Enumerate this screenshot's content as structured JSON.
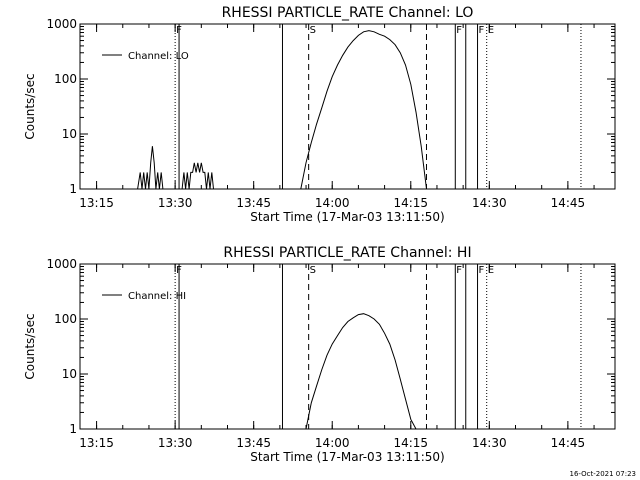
{
  "chart_data": [
    {
      "type": "line",
      "title": "RHESSI PARTICLE_RATE Channel: LO",
      "xlabel": "Start Time (17-Mar-03 13:11:50)",
      "ylabel": "Counts/sec",
      "yscale": "log",
      "ylim": [
        1,
        1000
      ],
      "xlim": [
        "13:11:50",
        "14:54:00"
      ],
      "x_tick_labels": [
        "13:15",
        "13:30",
        "13:45",
        "14:00",
        "14:15",
        "14:30",
        "14:45"
      ],
      "y_tick_labels": [
        "1",
        "10",
        "100",
        "1000"
      ],
      "grid": false,
      "legend": {
        "position": "top-left",
        "entries": [
          "Channel: LO"
        ]
      },
      "markers": [
        {
          "time": "13:30:00",
          "style": "dotted",
          "label": "F"
        },
        {
          "time": "13:30:45",
          "style": "solid",
          "label": ""
        },
        {
          "time": "13:50:30",
          "style": "solid",
          "label": ""
        },
        {
          "time": "13:55:30",
          "style": "dashed",
          "label": "S"
        },
        {
          "time": "14:18:00",
          "style": "dashed",
          "label": ""
        },
        {
          "time": "14:23:30",
          "style": "solid",
          "label": "F"
        },
        {
          "time": "14:25:30",
          "style": "solid",
          "label": ""
        },
        {
          "time": "14:27:45",
          "style": "solid",
          "label": "F"
        },
        {
          "time": "14:29:30",
          "style": "dotted",
          "label": "E"
        },
        {
          "time": "14:47:30",
          "style": "dotted",
          "label": ""
        }
      ],
      "series": [
        {
          "name": "Channel: LO",
          "segments": [
            {
              "x": [
                "13:22:50",
                "13:23:20",
                "13:23:40",
                "13:24:00",
                "13:24:20",
                "13:24:40",
                "13:25:00",
                "13:25:20",
                "13:25:40",
                "13:26:00",
                "13:26:20",
                "13:26:40",
                "13:27:00",
                "13:27:20",
                "13:27:40",
                "13:28:00"
              ],
              "y": [
                1,
                2,
                1,
                2,
                1,
                2,
                1,
                3,
                6,
                3,
                1,
                2,
                1,
                2,
                1,
                1
              ]
            },
            {
              "x": [
                "13:31:20",
                "13:31:40",
                "13:32:00",
                "13:32:20",
                "13:32:40",
                "13:33:00",
                "13:33:20",
                "13:33:40",
                "13:34:00",
                "13:34:20",
                "13:34:40",
                "13:35:00",
                "13:35:20",
                "13:35:40",
                "13:36:00",
                "13:36:20",
                "13:36:40",
                "13:37:00",
                "13:37:20"
              ],
              "y": [
                1,
                2,
                1,
                2,
                1,
                2,
                2,
                3,
                2,
                3,
                2,
                3,
                2,
                2,
                1,
                2,
                1,
                2,
                1
              ]
            },
            {
              "x": [
                "13:54:00",
                "13:55:00",
                "13:56:00",
                "13:57:00",
                "13:58:00",
                "13:59:00",
                "14:00:00",
                "14:01:00",
                "14:02:00",
                "14:03:00",
                "14:04:00",
                "14:05:00",
                "14:06:00",
                "14:07:00",
                "14:08:00",
                "14:09:00",
                "14:10:00",
                "14:11:00",
                "14:12:00",
                "14:13:00",
                "14:14:00",
                "14:15:00",
                "14:16:00",
                "14:17:00",
                "14:18:00"
              ],
              "y": [
                1,
                3,
                7,
                15,
                30,
                60,
                110,
                180,
                270,
                380,
                500,
                620,
                720,
                760,
                720,
                650,
                600,
                520,
                420,
                300,
                180,
                80,
                25,
                6,
                1
              ]
            }
          ]
        }
      ]
    },
    {
      "type": "line",
      "title": "RHESSI PARTICLE_RATE Channel: HI",
      "xlabel": "Start Time (17-Mar-03 13:11:50)",
      "ylabel": "Counts/sec",
      "yscale": "log",
      "ylim": [
        1,
        1000
      ],
      "xlim": [
        "13:11:50",
        "14:54:00"
      ],
      "x_tick_labels": [
        "13:15",
        "13:30",
        "13:45",
        "14:00",
        "14:15",
        "14:30",
        "14:45"
      ],
      "y_tick_labels": [
        "1",
        "10",
        "100",
        "1000"
      ],
      "grid": false,
      "legend": {
        "position": "top-left",
        "entries": [
          "Channel: HI"
        ]
      },
      "markers": [
        {
          "time": "13:30:00",
          "style": "dotted",
          "label": "F"
        },
        {
          "time": "13:30:45",
          "style": "solid",
          "label": ""
        },
        {
          "time": "13:50:30",
          "style": "solid",
          "label": ""
        },
        {
          "time": "13:55:30",
          "style": "dashed",
          "label": "S"
        },
        {
          "time": "14:18:00",
          "style": "dashed",
          "label": ""
        },
        {
          "time": "14:23:30",
          "style": "solid",
          "label": "F"
        },
        {
          "time": "14:25:30",
          "style": "solid",
          "label": ""
        },
        {
          "time": "14:27:45",
          "style": "solid",
          "label": "F"
        },
        {
          "time": "14:29:30",
          "style": "dotted",
          "label": "E"
        },
        {
          "time": "14:47:30",
          "style": "dotted",
          "label": ""
        }
      ],
      "series": [
        {
          "name": "Channel: HI",
          "segments": [
            {
              "x": [
                "13:55:00",
                "13:56:00",
                "13:57:00",
                "13:58:00",
                "13:59:00",
                "14:00:00",
                "14:01:00",
                "14:02:00",
                "14:03:00",
                "14:04:00",
                "14:05:00",
                "14:06:00",
                "14:07:00",
                "14:08:00",
                "14:09:00",
                "14:10:00",
                "14:11:00",
                "14:12:00",
                "14:13:00",
                "14:14:00",
                "14:15:00",
                "14:16:00"
              ],
              "y": [
                1,
                3,
                6,
                12,
                22,
                35,
                50,
                70,
                90,
                105,
                120,
                125,
                115,
                100,
                80,
                55,
                35,
                18,
                8,
                3.5,
                1.5,
                1
              ]
            }
          ]
        }
      ]
    }
  ],
  "footer_stamp": "16-Oct-2021 07:23"
}
